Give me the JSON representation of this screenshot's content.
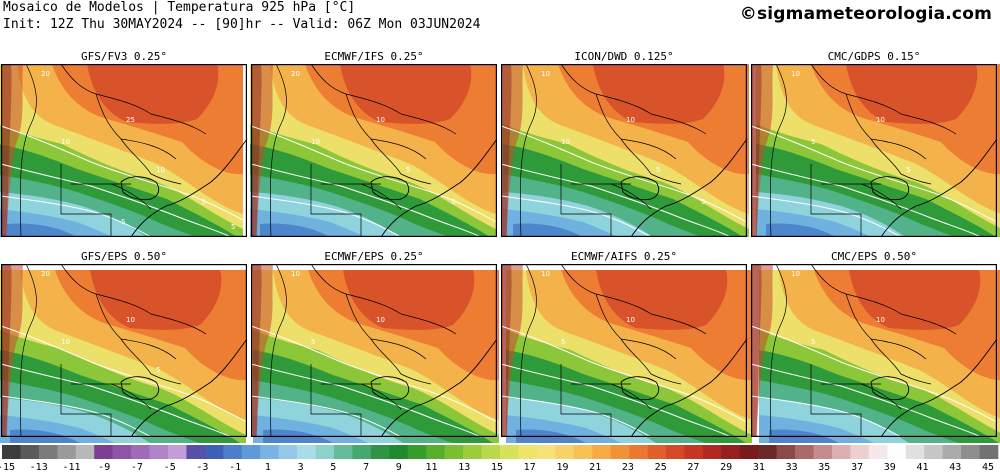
{
  "header": {
    "title_line1": "Mosaico de Modelos | Temperatura 925 hPa [°C]",
    "title_line2": "Init: 12Z Thu 30MAY2024 -- [90]hr -- Valid: 06Z Mon 03JUN2024",
    "credit": "©sigmameteorologia.com"
  },
  "panels": [
    {
      "name": "GFS/FV3 0.25°",
      "contours": [
        "20",
        "25",
        "10",
        "10",
        "5",
        "5",
        "5"
      ]
    },
    {
      "name": "ECMWF/IFS 0.25°",
      "contours": [
        "20",
        "10",
        "10",
        "5",
        "5"
      ]
    },
    {
      "name": "ICON/DWD 0.125°",
      "contours": [
        "10",
        "10",
        "10",
        "5",
        "5"
      ]
    },
    {
      "name": "CMC/GDPS 0.15°",
      "contours": [
        "10",
        "10",
        "5",
        "5"
      ]
    },
    {
      "name": "GFS/EPS 0.50°",
      "contours": [
        "20",
        "10",
        "10",
        "5"
      ]
    },
    {
      "name": "ECMWF/EPS 0.25°",
      "contours": [
        "10",
        "10",
        "5"
      ]
    },
    {
      "name": "ECMWF/AIFS 0.25°",
      "contours": [
        "10",
        "10",
        "5"
      ]
    },
    {
      "name": "CMC/EPS 0.50°",
      "contours": [
        "10",
        "10",
        "5"
      ]
    }
  ],
  "colorbar": {
    "labels": [
      "-15",
      "-13",
      "-11",
      "-9",
      "-7",
      "-5",
      "-3",
      "-1",
      "1",
      "3",
      "5",
      "7",
      "9",
      "11",
      "13",
      "15",
      "17",
      "19",
      "21",
      "23",
      "25",
      "27",
      "29",
      "31",
      "33",
      "35",
      "37",
      "39",
      "41",
      "43",
      "45"
    ],
    "colors": [
      "#3c3c3c",
      "#5a5a5a",
      "#7a7a7a",
      "#9a9a9a",
      "#b8b8b8",
      "#7b3f94",
      "#8d55a8",
      "#9e6bb8",
      "#b084c8",
      "#c29ed8",
      "#5a4fa6",
      "#3e5fb5",
      "#4d7fc8",
      "#5e99d8",
      "#7ab3e3",
      "#96c8ea",
      "#a9dbe8",
      "#8cd2c8",
      "#63bd9a",
      "#44a86f",
      "#2f9446",
      "#1f8a2e",
      "#359d2a",
      "#56ae2b",
      "#79bf31",
      "#9acd3a",
      "#b9d94a",
      "#d6e25a",
      "#ece56a",
      "#f4e27a",
      "#f6d36a",
      "#f6c155",
      "#f4ab43",
      "#f0923a",
      "#ea7832",
      "#e05f2c",
      "#d44a28",
      "#c43724",
      "#b02a22",
      "#95201f",
      "#7a1a1c",
      "#6a2a2a",
      "#8a4a4a",
      "#a86a6a",
      "#c48c8c",
      "#dcb0b0",
      "#ecd0d0",
      "#f6e8e8",
      "#fdfdfd",
      "#e0e0e0",
      "#c6c6c6",
      "#aaaaaa",
      "#8e8e8e",
      "#727272"
    ]
  }
}
